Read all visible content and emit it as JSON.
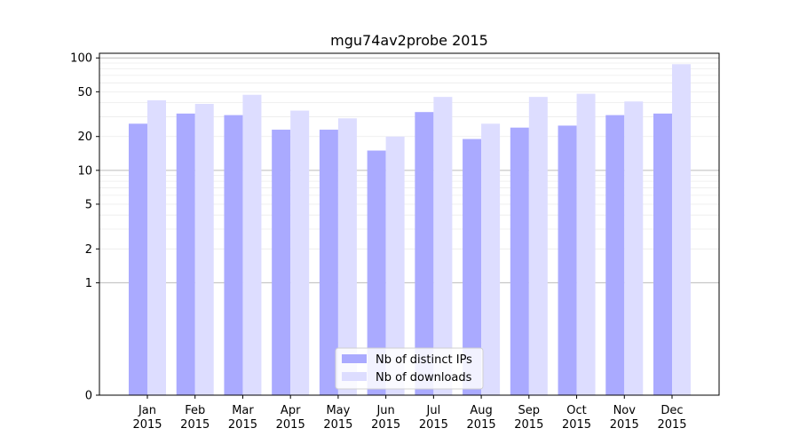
{
  "chart_data": {
    "type": "bar",
    "title": "mgu74av2probe 2015",
    "xlabel": "",
    "ylabel": "",
    "yscale": "symlog",
    "ylim": [
      0,
      110
    ],
    "yticks": [
      0,
      1,
      2,
      5,
      10,
      20,
      50,
      100
    ],
    "categories": [
      [
        "Jan",
        "2015"
      ],
      [
        "Feb",
        "2015"
      ],
      [
        "Mar",
        "2015"
      ],
      [
        "Apr",
        "2015"
      ],
      [
        "May",
        "2015"
      ],
      [
        "Jun",
        "2015"
      ],
      [
        "Jul",
        "2015"
      ],
      [
        "Aug",
        "2015"
      ],
      [
        "Sep",
        "2015"
      ],
      [
        "Oct",
        "2015"
      ],
      [
        "Nov",
        "2015"
      ],
      [
        "Dec",
        "2015"
      ]
    ],
    "series": [
      {
        "name": "Nb of distinct IPs",
        "color": "#aaaaff",
        "values": [
          26,
          32,
          31,
          23,
          23,
          15,
          33,
          19,
          24,
          25,
          31,
          32
        ]
      },
      {
        "name": "Nb of downloads",
        "color": "#ddddff",
        "values": [
          42,
          39,
          47,
          34,
          29,
          20,
          45,
          26,
          45,
          48,
          41,
          88
        ]
      }
    ],
    "legend": {
      "position": "bottom-center"
    },
    "grid": {
      "major": true,
      "minor": true
    }
  }
}
